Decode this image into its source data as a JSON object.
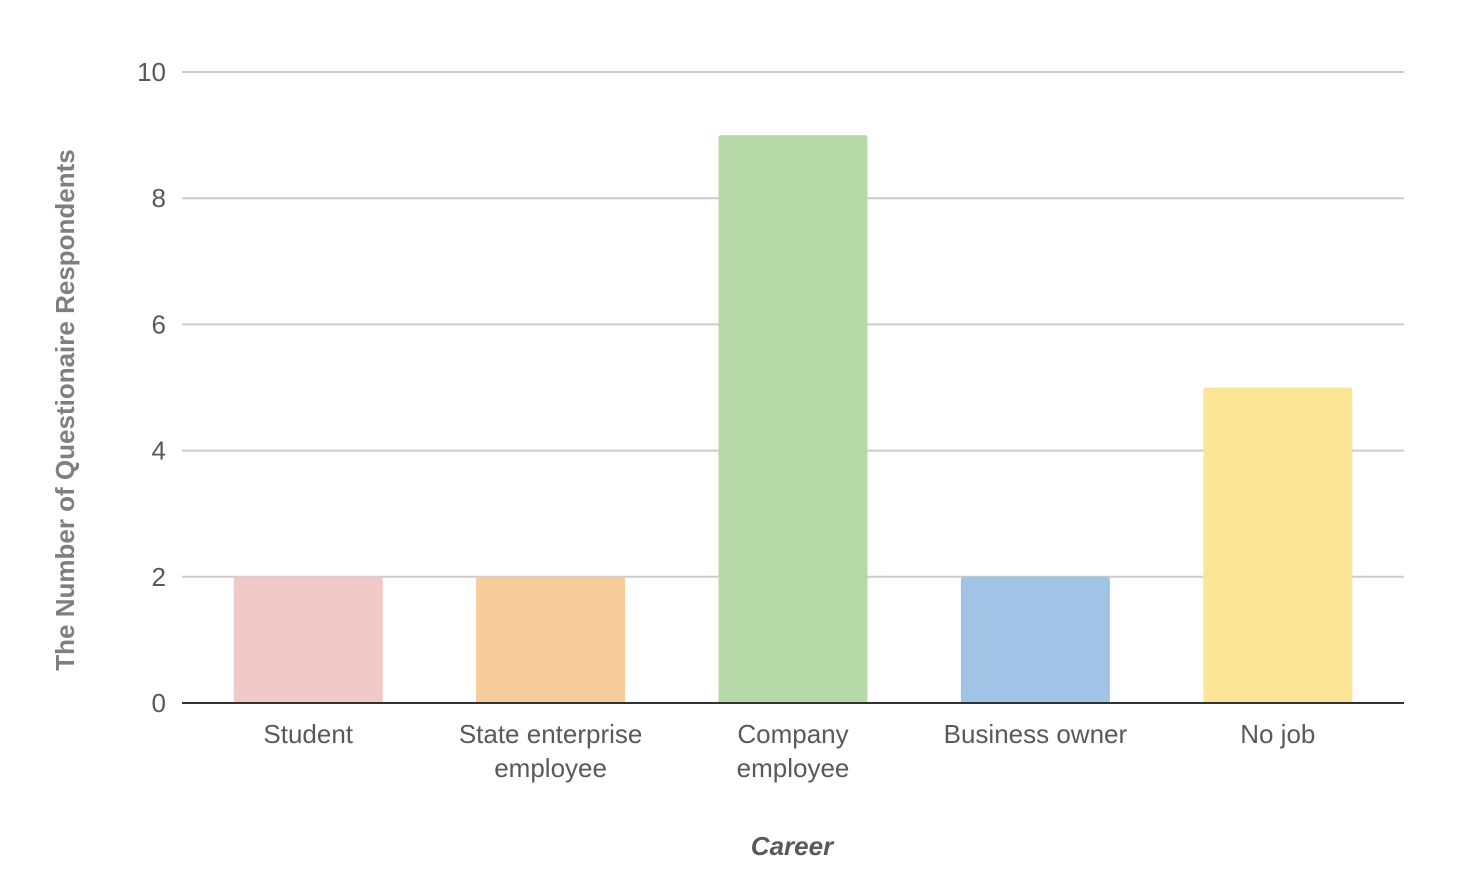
{
  "chart_data": {
    "type": "bar",
    "title": "",
    "xlabel": "Career",
    "ylabel": "The Number of Questionaire Respondents",
    "categories": [
      "Student",
      "State enterprise employee",
      "Company employee",
      "Business owner",
      "No job"
    ],
    "category_lines": [
      [
        "Student"
      ],
      [
        "State enterprise",
        "employee"
      ],
      [
        "Company",
        "employee"
      ],
      [
        "Business owner"
      ],
      [
        "No job"
      ]
    ],
    "values": [
      2,
      2,
      9,
      2,
      5
    ],
    "colors": [
      "#f2c9c9",
      "#f6cc9a",
      "#b7d9a7",
      "#a1c3e6",
      "#fde597"
    ],
    "ylim": [
      0,
      10
    ],
    "yticks": [
      0,
      2,
      4,
      6,
      8,
      10
    ],
    "grid": true,
    "legend": "none"
  }
}
